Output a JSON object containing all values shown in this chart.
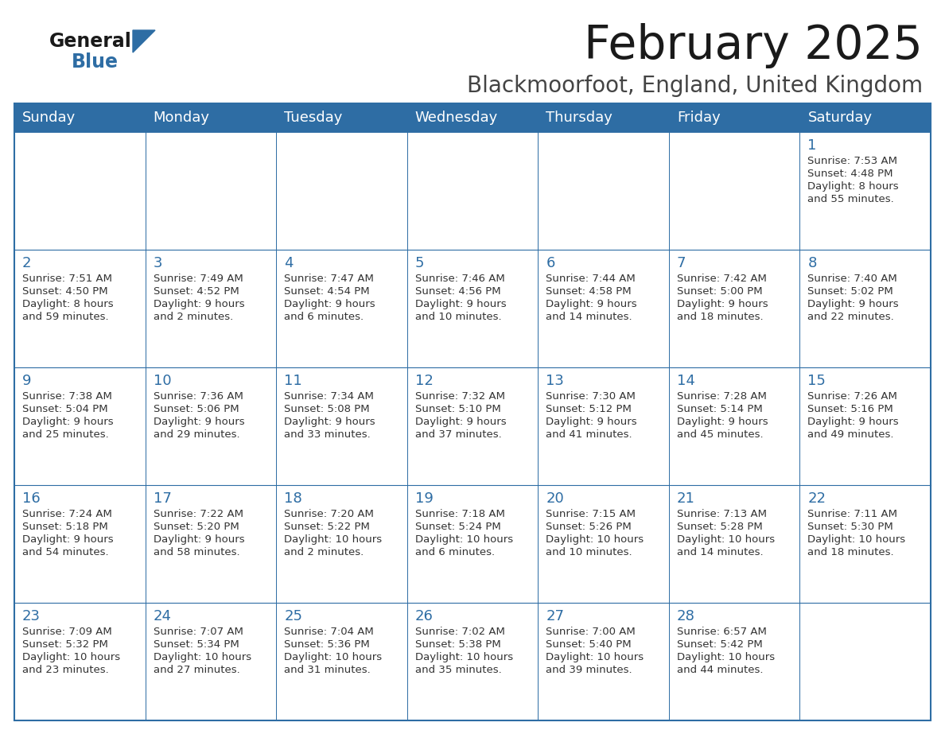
{
  "title": "February 2025",
  "subtitle": "Blackmoorfoot, England, United Kingdom",
  "days_of_week": [
    "Sunday",
    "Monday",
    "Tuesday",
    "Wednesday",
    "Thursday",
    "Friday",
    "Saturday"
  ],
  "header_bg": "#2E6DA4",
  "header_text": "#FFFFFF",
  "cell_bg": "#FAFAFA",
  "border_color": "#2E6DA4",
  "text_color": "#333333",
  "day_num_color": "#2E6DA4",
  "title_color": "#1a1a1a",
  "subtitle_color": "#444444",
  "calendar_data": [
    [
      null,
      null,
      null,
      null,
      null,
      null,
      {
        "day": 1,
        "sunrise": "7:53 AM",
        "sunset": "4:48 PM",
        "daylight": "8 hours",
        "daylight2": "and 55 minutes."
      }
    ],
    [
      {
        "day": 2,
        "sunrise": "7:51 AM",
        "sunset": "4:50 PM",
        "daylight": "8 hours",
        "daylight2": "and 59 minutes."
      },
      {
        "day": 3,
        "sunrise": "7:49 AM",
        "sunset": "4:52 PM",
        "daylight": "9 hours",
        "daylight2": "and 2 minutes."
      },
      {
        "day": 4,
        "sunrise": "7:47 AM",
        "sunset": "4:54 PM",
        "daylight": "9 hours",
        "daylight2": "and 6 minutes."
      },
      {
        "day": 5,
        "sunrise": "7:46 AM",
        "sunset": "4:56 PM",
        "daylight": "9 hours",
        "daylight2": "and 10 minutes."
      },
      {
        "day": 6,
        "sunrise": "7:44 AM",
        "sunset": "4:58 PM",
        "daylight": "9 hours",
        "daylight2": "and 14 minutes."
      },
      {
        "day": 7,
        "sunrise": "7:42 AM",
        "sunset": "5:00 PM",
        "daylight": "9 hours",
        "daylight2": "and 18 minutes."
      },
      {
        "day": 8,
        "sunrise": "7:40 AM",
        "sunset": "5:02 PM",
        "daylight": "9 hours",
        "daylight2": "and 22 minutes."
      }
    ],
    [
      {
        "day": 9,
        "sunrise": "7:38 AM",
        "sunset": "5:04 PM",
        "daylight": "9 hours",
        "daylight2": "and 25 minutes."
      },
      {
        "day": 10,
        "sunrise": "7:36 AM",
        "sunset": "5:06 PM",
        "daylight": "9 hours",
        "daylight2": "and 29 minutes."
      },
      {
        "day": 11,
        "sunrise": "7:34 AM",
        "sunset": "5:08 PM",
        "daylight": "9 hours",
        "daylight2": "and 33 minutes."
      },
      {
        "day": 12,
        "sunrise": "7:32 AM",
        "sunset": "5:10 PM",
        "daylight": "9 hours",
        "daylight2": "and 37 minutes."
      },
      {
        "day": 13,
        "sunrise": "7:30 AM",
        "sunset": "5:12 PM",
        "daylight": "9 hours",
        "daylight2": "and 41 minutes."
      },
      {
        "day": 14,
        "sunrise": "7:28 AM",
        "sunset": "5:14 PM",
        "daylight": "9 hours",
        "daylight2": "and 45 minutes."
      },
      {
        "day": 15,
        "sunrise": "7:26 AM",
        "sunset": "5:16 PM",
        "daylight": "9 hours",
        "daylight2": "and 49 minutes."
      }
    ],
    [
      {
        "day": 16,
        "sunrise": "7:24 AM",
        "sunset": "5:18 PM",
        "daylight": "9 hours",
        "daylight2": "and 54 minutes."
      },
      {
        "day": 17,
        "sunrise": "7:22 AM",
        "sunset": "5:20 PM",
        "daylight": "9 hours",
        "daylight2": "and 58 minutes."
      },
      {
        "day": 18,
        "sunrise": "7:20 AM",
        "sunset": "5:22 PM",
        "daylight": "10 hours",
        "daylight2": "and 2 minutes."
      },
      {
        "day": 19,
        "sunrise": "7:18 AM",
        "sunset": "5:24 PM",
        "daylight": "10 hours",
        "daylight2": "and 6 minutes."
      },
      {
        "day": 20,
        "sunrise": "7:15 AM",
        "sunset": "5:26 PM",
        "daylight": "10 hours",
        "daylight2": "and 10 minutes."
      },
      {
        "day": 21,
        "sunrise": "7:13 AM",
        "sunset": "5:28 PM",
        "daylight": "10 hours",
        "daylight2": "and 14 minutes."
      },
      {
        "day": 22,
        "sunrise": "7:11 AM",
        "sunset": "5:30 PM",
        "daylight": "10 hours",
        "daylight2": "and 18 minutes."
      }
    ],
    [
      {
        "day": 23,
        "sunrise": "7:09 AM",
        "sunset": "5:32 PM",
        "daylight": "10 hours",
        "daylight2": "and 23 minutes."
      },
      {
        "day": 24,
        "sunrise": "7:07 AM",
        "sunset": "5:34 PM",
        "daylight": "10 hours",
        "daylight2": "and 27 minutes."
      },
      {
        "day": 25,
        "sunrise": "7:04 AM",
        "sunset": "5:36 PM",
        "daylight": "10 hours",
        "daylight2": "and 31 minutes."
      },
      {
        "day": 26,
        "sunrise": "7:02 AM",
        "sunset": "5:38 PM",
        "daylight": "10 hours",
        "daylight2": "and 35 minutes."
      },
      {
        "day": 27,
        "sunrise": "7:00 AM",
        "sunset": "5:40 PM",
        "daylight": "10 hours",
        "daylight2": "and 39 minutes."
      },
      {
        "day": 28,
        "sunrise": "6:57 AM",
        "sunset": "5:42 PM",
        "daylight": "10 hours",
        "daylight2": "and 44 minutes."
      },
      null
    ]
  ]
}
